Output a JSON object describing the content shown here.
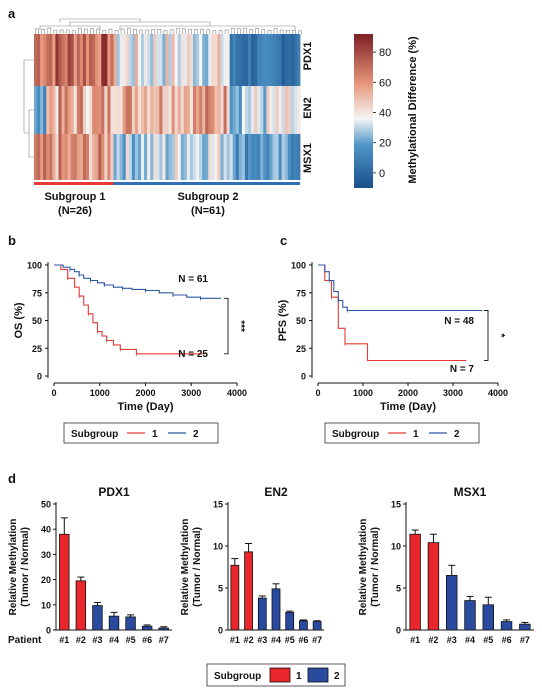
{
  "panels": {
    "a": "a",
    "b": "b",
    "c": "c",
    "d": "d"
  },
  "heatmap": {
    "rows": [
      "PDX1",
      "EN2",
      "MSX1"
    ],
    "groups": [
      {
        "label": "Subgroup 1",
        "n": "(N=26)",
        "count": 26,
        "color": "#e53a35"
      },
      {
        "label": "Subgroup 2",
        "n": "(N=61)",
        "count": 61,
        "color": "#2f6fb3"
      }
    ],
    "colorbar": {
      "title": "Methylational Difference (%)",
      "ticks": [
        "80",
        "60",
        "40",
        "20",
        "0"
      ],
      "min": -10,
      "max": 92
    }
  },
  "km_legend": {
    "title": "Subgroup",
    "items": [
      {
        "label": "1",
        "color": "#e53a35"
      },
      {
        "label": "2",
        "color": "#2f57a8"
      }
    ]
  },
  "bar_legend": {
    "title": "Subgroup",
    "items": [
      {
        "label": "1",
        "color": "#e8262b"
      },
      {
        "label": "2",
        "color": "#2a4aa0"
      }
    ]
  },
  "colors": {
    "subgroup1": "#e8262b",
    "subgroup2": "#2a4aa0",
    "km1": "#e53a35",
    "km2": "#2f57a8"
  },
  "chart_data": [
    {
      "id": "os",
      "type": "line",
      "panel": "b",
      "ylabel": "OS (%)",
      "xlabel": "Time (Day)",
      "xlim": [
        0,
        4000
      ],
      "ylim": [
        0,
        100
      ],
      "xticks": [
        "0",
        "1000",
        "2000",
        "3000",
        "4000"
      ],
      "yticks": [
        "0",
        "25",
        "50",
        "75",
        "100"
      ],
      "significance": "***",
      "series": [
        {
          "name": "1",
          "label": "N = 25",
          "x": [
            0,
            150,
            300,
            450,
            550,
            650,
            750,
            850,
            950,
            1050,
            1150,
            1300,
            1450,
            1650,
            1800,
            3300
          ],
          "y": [
            100,
            96,
            88,
            80,
            72,
            64,
            56,
            48,
            40,
            36,
            32,
            28,
            24,
            24,
            20,
            20
          ]
        },
        {
          "name": "2",
          "label": "N = 61",
          "x": [
            0,
            200,
            350,
            450,
            550,
            650,
            800,
            950,
            1100,
            1300,
            1500,
            1700,
            2000,
            2300,
            2600,
            2900,
            3200,
            3650
          ],
          "y": [
            100,
            98,
            96,
            94,
            91,
            88,
            86,
            84,
            82,
            80,
            79,
            78,
            77,
            75,
            73,
            71,
            70,
            70
          ]
        }
      ]
    },
    {
      "id": "pfs",
      "type": "line",
      "panel": "c",
      "ylabel": "PFS (%)",
      "xlabel": "Time (Day)",
      "xlim": [
        0,
        4000
      ],
      "ylim": [
        0,
        100
      ],
      "xticks": [
        "0",
        "1000",
        "2000",
        "3000",
        "4000"
      ],
      "yticks": [
        "0",
        "25",
        "50",
        "75",
        "100"
      ],
      "significance": "*",
      "series": [
        {
          "name": "1",
          "label": "N = 7",
          "x": [
            0,
            150,
            300,
            450,
            600,
            1100,
            3300
          ],
          "y": [
            100,
            86,
            71,
            43,
            29,
            14,
            14
          ]
        },
        {
          "name": "2",
          "label": "N = 48",
          "x": [
            0,
            150,
            250,
            350,
            450,
            550,
            650,
            3650
          ],
          "y": [
            100,
            94,
            86,
            76,
            68,
            62,
            59,
            59
          ]
        }
      ]
    },
    {
      "id": "pdx1",
      "type": "bar",
      "panel": "d",
      "title": "PDX1",
      "ylabel": "Relative Methylation (Tumor / Normal)",
      "xprefix": "Patient",
      "categories": [
        "#1",
        "#2",
        "#3",
        "#4",
        "#5",
        "#6",
        "#7"
      ],
      "values": [
        38,
        19.5,
        9.7,
        5.5,
        5.2,
        1.5,
        0.8
      ],
      "errors": [
        6.5,
        1.5,
        1.2,
        1.5,
        0.8,
        0.5,
        0.5
      ],
      "group": [
        1,
        1,
        2,
        2,
        2,
        2,
        2
      ],
      "ylim": [
        0,
        50
      ],
      "yticks": [
        "0",
        "10",
        "20",
        "30",
        "40",
        "50"
      ]
    },
    {
      "id": "en2",
      "type": "bar",
      "panel": "d",
      "title": "EN2",
      "ylabel": "Relative Methylation (Tumor / Normal)",
      "xprefix": "Patient",
      "categories": [
        "#1",
        "#2",
        "#3",
        "#4",
        "#5",
        "#6",
        "#7"
      ],
      "values": [
        7.7,
        9.3,
        3.8,
        4.9,
        2.1,
        1.1,
        1.0
      ],
      "errors": [
        0.8,
        1.0,
        0.25,
        0.6,
        0.15,
        0.1,
        0.1
      ],
      "group": [
        1,
        1,
        2,
        2,
        2,
        2,
        2
      ],
      "ylim": [
        0,
        15
      ],
      "yticks": [
        "0",
        "5",
        "10",
        "15"
      ]
    },
    {
      "id": "msx1",
      "type": "bar",
      "panel": "d",
      "title": "MSX1",
      "ylabel": "Relative Methylation (Tumor / Normal)",
      "xprefix": "Patient",
      "categories": [
        "#1",
        "#2",
        "#3",
        "#4",
        "#5",
        "#6",
        "#7"
      ],
      "values": [
        11.4,
        10.4,
        6.5,
        3.5,
        3.0,
        1.0,
        0.7
      ],
      "errors": [
        0.5,
        1.0,
        1.2,
        0.5,
        0.9,
        0.2,
        0.2
      ],
      "group": [
        1,
        1,
        2,
        2,
        2,
        2,
        2
      ],
      "ylim": [
        0,
        15
      ],
      "yticks": [
        "0",
        "5",
        "10",
        "15"
      ]
    }
  ]
}
